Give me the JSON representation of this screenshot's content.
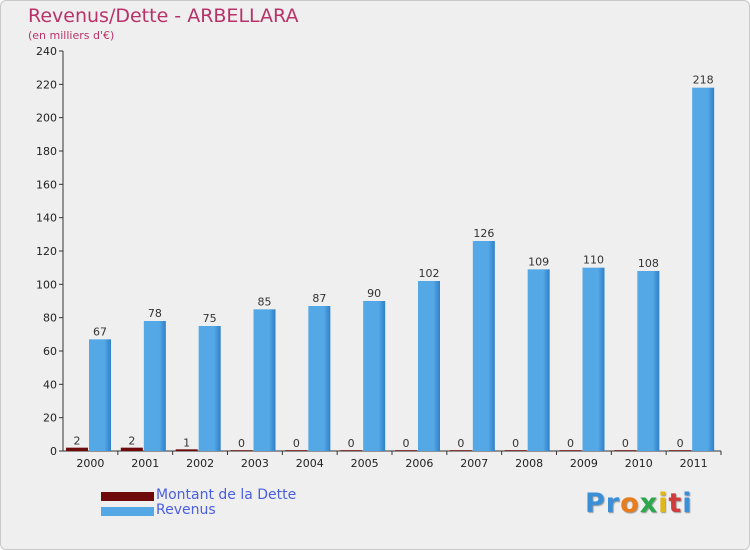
{
  "colors": {
    "title": "#b8326a",
    "revenus": "#55a8e6",
    "revenus_dark": "#2f80c8",
    "dette": "#6e0a0a",
    "legend_text": "#4a5ee0"
  },
  "logo": {
    "text": "Proxiti",
    "letter_colors": [
      "#3b8fd6",
      "#3b8fd6",
      "#e87d1e",
      "#2aa84a",
      "#e0b81a",
      "#d23b3b",
      "#3b8fd6"
    ]
  },
  "chart_data": {
    "type": "bar",
    "title": "Revenus/Dette - ARBELLARA",
    "subtitle": "(en milliers d'€)",
    "xlabel": "",
    "ylabel": "",
    "ylim": [
      0,
      240
    ],
    "yticks": [
      0,
      20,
      40,
      60,
      80,
      100,
      120,
      140,
      160,
      180,
      200,
      220,
      240
    ],
    "categories": [
      "2000",
      "2001",
      "2002",
      "2003",
      "2004",
      "2005",
      "2006",
      "2007",
      "2008",
      "2009",
      "2010",
      "2011"
    ],
    "series": [
      {
        "name": "Montant de la Dette",
        "values": [
          2,
          2,
          1,
          0,
          0,
          0,
          0,
          0,
          0,
          0,
          0,
          0
        ]
      },
      {
        "name": "Revenus",
        "values": [
          67,
          78,
          75,
          85,
          87,
          90,
          102,
          126,
          109,
          110,
          108,
          218
        ]
      }
    ],
    "legend": "bottom-left",
    "grid": false
  }
}
